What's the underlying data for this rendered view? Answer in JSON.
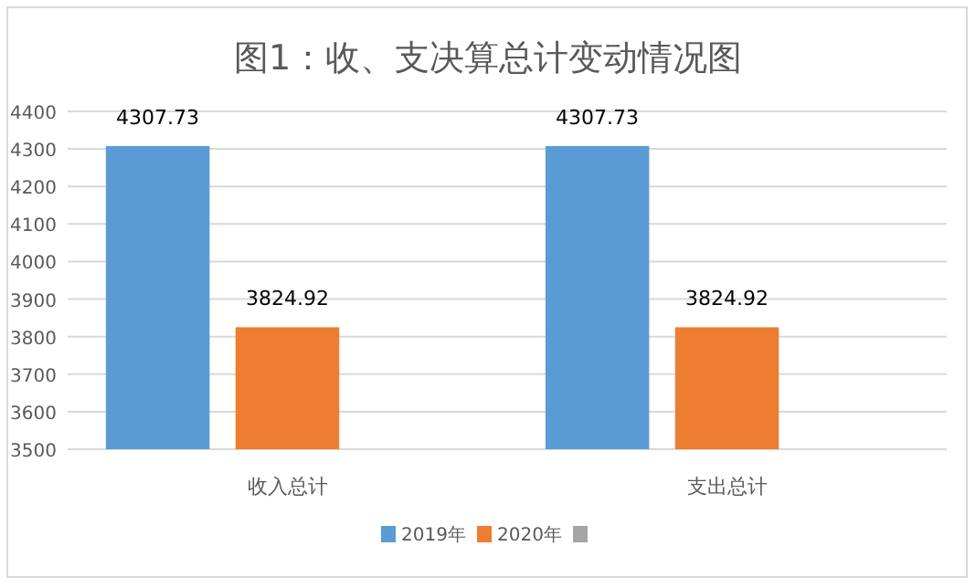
{
  "chart_data": {
    "type": "bar",
    "title": "图1：收、支决算总计变动情况图",
    "categories": [
      "收入总计",
      "支出总计"
    ],
    "series": [
      {
        "name": "2019年",
        "color": "#5b9bd5",
        "values": [
          4307.73,
          4307.73
        ]
      },
      {
        "name": "2020年",
        "color": "#ed7d31",
        "values": [
          3824.92,
          3824.92
        ]
      },
      {
        "color": "#a5a5a5",
        "values": [
          null,
          null
        ]
      }
    ],
    "ylim": [
      3500,
      4400
    ],
    "yticks": [
      3500,
      3600,
      3700,
      3800,
      3900,
      4000,
      4100,
      4200,
      4300,
      4400
    ],
    "grid": "y",
    "legend": "bottom",
    "data_labels": true
  }
}
